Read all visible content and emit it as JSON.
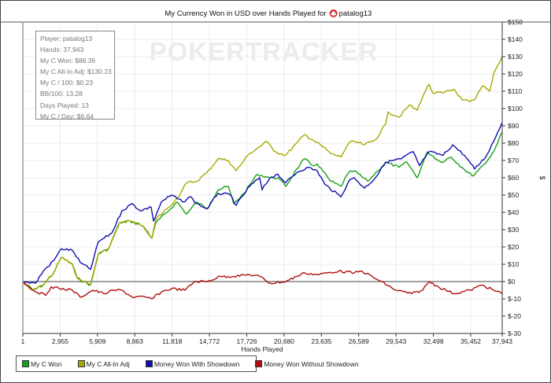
{
  "title": {
    "prefix": "My Currency Won in USD over Hands Played for",
    "player": "patalog13",
    "icon": "pokerstars-spade-icon"
  },
  "watermark": "POKERTRACKER",
  "stats": [
    "Player: patalog13",
    "Hands: 37,943",
    "My C Won: $86.36",
    "My C All-In Adj: $130.23",
    "My C / 100: $0.23",
    "BB/100: 13.28",
    "Days Played: 13",
    "My C / Day: $6.64"
  ],
  "colors": {
    "green": "#18a018",
    "yellow": "#a8a800",
    "blue": "#1010b0",
    "red": "#b01010",
    "grid": "#ececec",
    "zero": "#808080"
  },
  "chart_data": {
    "type": "line",
    "title": "My Currency Won in USD over Hands Played for patalog13",
    "xlabel": "Hands Played",
    "ylabel": "$",
    "xlim": [
      1,
      37943
    ],
    "ylim": [
      -30,
      150
    ],
    "grid": true,
    "legend_position": "bottom-left",
    "x_ticks": [
      1,
      2955,
      5909,
      8863,
      11818,
      14772,
      17726,
      20680,
      23635,
      26589,
      29543,
      32498,
      35452,
      37943
    ],
    "x_tick_labels": [
      "1",
      "2,955",
      "5,909",
      "8,863",
      "11,818",
      "14,772",
      "17,726",
      "20,680",
      "23,635",
      "26,589",
      "29,543",
      "32,498",
      "35,452",
      "37,943"
    ],
    "y_ticks": [
      150,
      140,
      130,
      120,
      110,
      100,
      90,
      80,
      70,
      60,
      50,
      40,
      30,
      20,
      10,
      0,
      -10,
      -20,
      -30
    ],
    "y_tick_labels": [
      "$150",
      "$140",
      "$130",
      "$120",
      "$110",
      "$100",
      "$90",
      "$80",
      "$70",
      "$60",
      "$50",
      "$40",
      "$30",
      "$20",
      "$10",
      "$0",
      "$-10",
      "$-20",
      "$-30"
    ],
    "series": [
      {
        "name": "My C Won",
        "color": "#18a018",
        "x": [
          1,
          810,
          1620,
          2430,
          3053,
          3925,
          4299,
          5358,
          5981,
          6791,
          7663,
          8473,
          9532,
          10217,
          10529,
          11401,
          12211,
          12958,
          13768,
          14578,
          15450,
          16260,
          16696,
          17506,
          18565,
          19562,
          20185,
          20808,
          21680,
          22303,
          22926,
          23300,
          24359,
          25169,
          25792,
          26228,
          27287,
          28097,
          28720,
          29779,
          30402,
          31212,
          32022,
          33081,
          33891,
          34763,
          35573,
          36383,
          37006,
          37442,
          37943
        ],
        "y": [
          0,
          -5,
          -2,
          5,
          14,
          10,
          2,
          -2,
          16,
          19,
          34,
          35,
          32,
          25,
          34,
          40,
          46,
          39,
          46,
          42,
          53,
          55,
          45,
          51,
          62,
          60,
          60,
          55,
          65,
          71,
          67,
          68,
          58,
          55,
          63,
          64,
          58,
          64,
          69,
          66,
          69,
          60,
          75,
          69,
          72,
          66,
          61,
          67,
          72,
          78,
          86.36
        ]
      },
      {
        "name": "My C All-In Adj",
        "color": "#a8a800",
        "x": [
          1,
          810,
          1620,
          2430,
          3053,
          3925,
          4299,
          5358,
          5981,
          6791,
          7663,
          8473,
          9532,
          10217,
          10529,
          11401,
          12211,
          12958,
          13768,
          14578,
          15450,
          16260,
          16883,
          17506,
          17942,
          18752,
          19251,
          19998,
          20808,
          21680,
          22303,
          22926,
          23736,
          24359,
          25169,
          25792,
          26228,
          27038,
          27910,
          28720,
          28907,
          29779,
          30589,
          31212,
          31648,
          32146,
          32458,
          33268,
          34140,
          34763,
          35386,
          35760,
          36383,
          36944,
          37255,
          37943
        ],
        "y": [
          0,
          -5,
          -2,
          5,
          14,
          10,
          2,
          -2,
          16,
          19,
          34,
          35,
          32,
          25,
          36,
          42,
          48,
          57,
          58,
          63,
          71,
          70,
          64,
          70,
          74,
          78,
          81,
          75,
          73,
          80,
          85,
          82,
          78,
          74,
          72,
          80,
          81,
          79,
          82,
          91,
          98,
          95,
          102,
          99,
          107,
          114,
          109,
          109,
          111,
          105,
          104,
          105,
          113,
          110,
          120,
          130.23
        ]
      },
      {
        "name": "Money Won With Showdown",
        "color": "#1010b0",
        "x": [
          1,
          997,
          1620,
          2430,
          3053,
          3925,
          4548,
          5358,
          5981,
          7040,
          7850,
          8660,
          9283,
          10155,
          10342,
          10965,
          11775,
          12647,
          13270,
          13768,
          14578,
          15450,
          16447,
          16883,
          17942,
          18752,
          18939,
          19562,
          20185,
          20808,
          21680,
          22490,
          23300,
          23923,
          25169,
          25792,
          26228,
          27038,
          27910,
          28720,
          29966,
          30900,
          31399,
          32146,
          33268,
          34016,
          34950,
          35760,
          36632,
          37255,
          37943
        ],
        "y": [
          0,
          -1,
          6,
          12,
          19,
          18,
          11,
          7,
          23,
          28,
          41,
          45,
          41,
          43,
          35,
          46,
          50,
          46,
          49,
          45,
          42,
          51,
          50,
          44,
          55,
          60,
          53,
          60,
          62,
          57,
          63,
          66,
          64,
          56,
          49,
          58,
          60,
          54,
          60,
          69,
          71,
          75,
          67,
          75,
          73,
          79,
          73,
          65,
          72,
          81,
          92
        ]
      },
      {
        "name": "Money Won Without Showdown",
        "color": "#b01010",
        "x": [
          1,
          810,
          1807,
          2243,
          2866,
          3925,
          4548,
          5545,
          6417,
          7227,
          7850,
          8660,
          9719,
          10217,
          10965,
          11775,
          12834,
          13581,
          14578,
          15637,
          16696,
          17942,
          18752,
          19562,
          20808,
          21680,
          22303,
          23300,
          24982,
          26228,
          26851,
          28097,
          29530,
          30776,
          31648,
          32146,
          32894,
          34140,
          35386,
          36383,
          37255,
          37943
        ],
        "y": [
          0,
          -5,
          -8,
          -3,
          -4,
          -5,
          -9,
          -5,
          -7,
          -5,
          -5,
          -9,
          -9,
          -10,
          -6,
          -4,
          -5,
          0,
          0,
          3,
          3,
          4,
          3,
          -1,
          0,
          3,
          5,
          4,
          6,
          5,
          6,
          1,
          -5,
          -7,
          -5,
          0,
          -3,
          -7,
          -5,
          -2,
          -5,
          -7
        ]
      }
    ]
  }
}
